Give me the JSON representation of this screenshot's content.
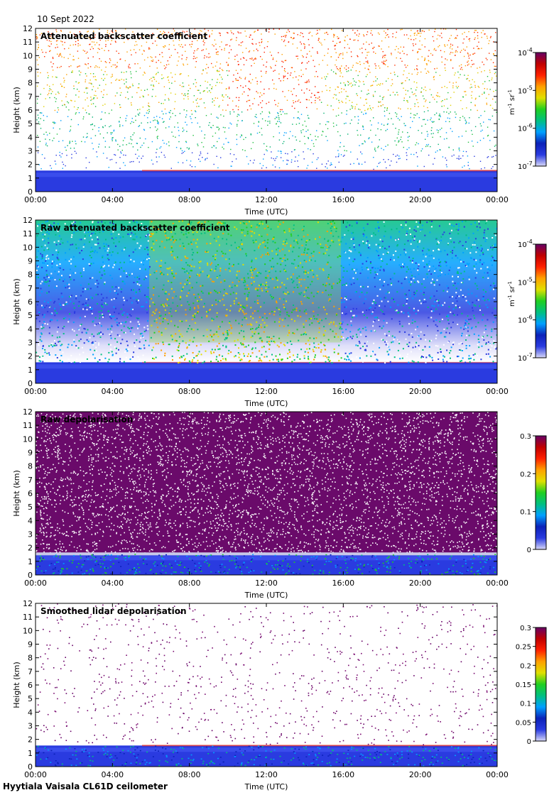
{
  "date_label": "10 Sept 2022",
  "footer": "Hyytiala Vaisala CL61D ceilometer",
  "colors": {
    "scale": [
      "#ffffff",
      "#d8d8f8",
      "#2a3be0",
      "#0b21b8",
      "#00a0ff",
      "#00c080",
      "#20d020",
      "#e0e000",
      "#ffa000",
      "#ff2000",
      "#c00000",
      "#660066"
    ]
  },
  "chart_data": [
    {
      "type": "heatmap",
      "title": "Attenuated backscatter coefficient",
      "xlabel": "Time (UTC)",
      "ylabel": "Height (km)",
      "x_ticks": [
        "00:00",
        "04:00",
        "08:00",
        "12:00",
        "16:00",
        "20:00",
        "00:00"
      ],
      "y_ticks": [
        "0",
        "1",
        "2",
        "3",
        "4",
        "5",
        "6",
        "7",
        "8",
        "9",
        "10",
        "11",
        "12"
      ],
      "ylim": [
        0,
        12
      ],
      "colorbar": {
        "scale": "log",
        "range": [
          1e-07,
          0.0001
        ],
        "tick_bases": [
          "10",
          "10",
          "10",
          "10"
        ],
        "tick_exps": [
          "-7",
          "-6",
          "-5",
          "-4"
        ],
        "unit_parts": [
          "m",
          "-1",
          "sr",
          "-1"
        ]
      }
    },
    {
      "type": "heatmap",
      "title": "Raw attenuated backscatter coefficient",
      "xlabel": "Time (UTC)",
      "ylabel": "Height (km)",
      "x_ticks": [
        "00:00",
        "04:00",
        "08:00",
        "12:00",
        "16:00",
        "20:00",
        "00:00"
      ],
      "y_ticks": [
        "0",
        "1",
        "2",
        "3",
        "4",
        "5",
        "6",
        "7",
        "8",
        "9",
        "10",
        "11",
        "12"
      ],
      "ylim": [
        0,
        12
      ],
      "colorbar": {
        "scale": "log",
        "range": [
          1e-07,
          0.0001
        ],
        "tick_bases": [
          "10",
          "10",
          "10",
          "10"
        ],
        "tick_exps": [
          "-7",
          "-6",
          "-5",
          "-4"
        ],
        "unit_parts": [
          "m",
          "-1",
          "sr",
          "-1"
        ]
      }
    },
    {
      "type": "heatmap",
      "title": "Raw depolarisation",
      "xlabel": "Time (UTC)",
      "ylabel": "Height (km)",
      "x_ticks": [
        "00:00",
        "04:00",
        "08:00",
        "12:00",
        "16:00",
        "20:00",
        "00:00"
      ],
      "y_ticks": [
        "0",
        "1",
        "2",
        "3",
        "4",
        "5",
        "6",
        "7",
        "8",
        "9",
        "10",
        "11",
        "12"
      ],
      "ylim": [
        0,
        12
      ],
      "colorbar": {
        "scale": "linear",
        "range": [
          0,
          0.3
        ],
        "ticks": [
          "0",
          "0.1",
          "0.2",
          "0.3"
        ]
      }
    },
    {
      "type": "heatmap",
      "title": "Smoothed lidar depolarisation",
      "xlabel": "Time (UTC)",
      "ylabel": "Height (km)",
      "x_ticks": [
        "00:00",
        "04:00",
        "08:00",
        "12:00",
        "16:00",
        "20:00",
        "00:00"
      ],
      "y_ticks": [
        "0",
        "1",
        "2",
        "3",
        "4",
        "5",
        "6",
        "7",
        "8",
        "9",
        "10",
        "11",
        "12"
      ],
      "ylim": [
        0,
        12
      ],
      "colorbar": {
        "scale": "linear",
        "range": [
          0,
          0.3
        ],
        "ticks": [
          "0",
          "0.05",
          "0.1",
          "0.15",
          "0.2",
          "0.25",
          "0.3"
        ]
      }
    }
  ]
}
